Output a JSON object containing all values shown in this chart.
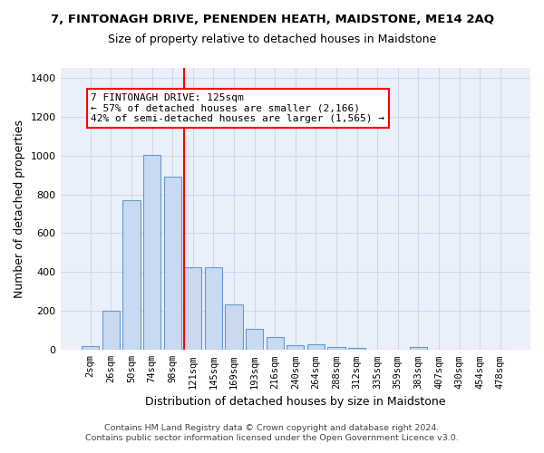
{
  "title": "7, FINTONAGH DRIVE, PENENDEN HEATH, MAIDSTONE, ME14 2AQ",
  "subtitle": "Size of property relative to detached houses in Maidstone",
  "xlabel": "Distribution of detached houses by size in Maidstone",
  "ylabel": "Number of detached properties",
  "footnote1": "Contains HM Land Registry data © Crown copyright and database right 2024.",
  "footnote2": "Contains public sector information licensed under the Open Government Licence v3.0.",
  "annotation_title": "7 FINTONAGH DRIVE: 125sqm",
  "annotation_line1": "← 57% of detached houses are smaller (2,166)",
  "annotation_line2": "42% of semi-detached houses are larger (1,565) →",
  "bar_labels": [
    "2sqm",
    "26sqm",
    "50sqm",
    "74sqm",
    "98sqm",
    "121sqm",
    "145sqm",
    "169sqm",
    "193sqm",
    "216sqm",
    "240sqm",
    "264sqm",
    "288sqm",
    "312sqm",
    "335sqm",
    "359sqm",
    "383sqm",
    "407sqm",
    "430sqm",
    "454sqm",
    "478sqm"
  ],
  "bar_heights": [
    20,
    200,
    770,
    1005,
    890,
    425,
    425,
    235,
    110,
    65,
    25,
    30,
    15,
    10,
    0,
    0,
    15,
    0,
    0,
    0,
    0
  ],
  "bar_color": "#c9d9f0",
  "bar_edge_color": "#6699cc",
  "red_line_bin": 5,
  "ylim": [
    0,
    1450
  ],
  "yticks": [
    0,
    200,
    400,
    600,
    800,
    1000,
    1200,
    1400
  ],
  "grid_color": "#d0d8e8",
  "bg_color": "#eaf0fb",
  "annotation_box_color": "white",
  "annotation_border_color": "red",
  "red_line_color": "red",
  "title_fontsize": 9.5,
  "subtitle_fontsize": 9,
  "tick_fontsize": 7.5,
  "ylabel_fontsize": 9,
  "xlabel_fontsize": 9,
  "annot_fontsize": 8,
  "footnote_fontsize": 6.8
}
